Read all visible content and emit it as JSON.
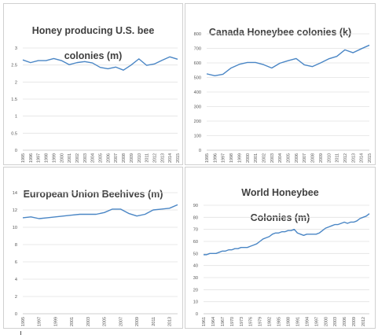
{
  "chart_data": [
    {
      "type": "line",
      "title": "Honey producing U.S. bee colonies (m)",
      "title_lines": [
        "Honey producing U.S. bee",
        "colonies (m)"
      ],
      "xlabel": "",
      "ylabel": "",
      "ylim": [
        0,
        3
      ],
      "yticks": [
        "0",
        "0.5",
        "1",
        "1.5",
        "2",
        "2.5",
        "3"
      ],
      "xticks": [
        "1995",
        "1996",
        "1997",
        "1998",
        "1999",
        "2000",
        "2001",
        "2002",
        "2003",
        "2004",
        "2005",
        "2006",
        "2007",
        "2008",
        "2009",
        "2010",
        "2011",
        "2012",
        "2013",
        "2014",
        "2015"
      ],
      "grid": true,
      "series": [
        {
          "color": "#4a86c5",
          "x": [
            1995,
            1996,
            1997,
            1998,
            1999,
            2000,
            2001,
            2002,
            2003,
            2004,
            2005,
            2006,
            2007,
            2008,
            2009,
            2010,
            2011,
            2012,
            2013,
            2014,
            2015
          ],
          "values": [
            2.65,
            2.57,
            2.63,
            2.63,
            2.69,
            2.63,
            2.51,
            2.57,
            2.6,
            2.56,
            2.43,
            2.39,
            2.44,
            2.35,
            2.5,
            2.68,
            2.49,
            2.53,
            2.64,
            2.74,
            2.67
          ]
        }
      ]
    },
    {
      "type": "line",
      "title": "Canada Honeybee colonies (k)",
      "title_lines": [
        "Canada Honeybee colonies (k)"
      ],
      "xlabel": "",
      "ylabel": "",
      "ylim": [
        0,
        800
      ],
      "yticks": [
        "0",
        "100",
        "200",
        "300",
        "400",
        "500",
        "600",
        "700",
        "800"
      ],
      "xticks": [
        "1995",
        "1996",
        "1997",
        "1998",
        "1999",
        "2000",
        "2001",
        "2002",
        "2003",
        "2004",
        "2005",
        "2006",
        "2007",
        "2008",
        "2009",
        "2010",
        "2011",
        "2012",
        "2013",
        "2014",
        "2015"
      ],
      "grid": true,
      "series": [
        {
          "color": "#4a86c5",
          "x": [
            1995,
            1996,
            1997,
            1998,
            1999,
            2000,
            2001,
            2002,
            2003,
            2004,
            2005,
            2006,
            2007,
            2008,
            2009,
            2010,
            2011,
            2012,
            2013,
            2014,
            2015
          ],
          "values": [
            525,
            512,
            522,
            565,
            590,
            603,
            603,
            588,
            565,
            598,
            615,
            630,
            587,
            575,
            600,
            628,
            645,
            690,
            670,
            697,
            722
          ]
        }
      ]
    },
    {
      "type": "line",
      "title": "European Union Beehives (m)",
      "title_lines": [
        "European Union Beehives (m)"
      ],
      "xlabel": "",
      "ylabel": "",
      "ylim": [
        0,
        14
      ],
      "yticks": [
        "0",
        "2",
        "4",
        "6",
        "8",
        "10",
        "12",
        "14"
      ],
      "xticks": [
        "1995",
        "1997",
        "1999",
        "2001",
        "2003",
        "2005",
        "2007",
        "2009",
        "2011",
        "2013"
      ],
      "grid": true,
      "series": [
        {
          "color": "#4a86c5",
          "x": [
            1995,
            1996,
            1997,
            1998,
            1999,
            2000,
            2001,
            2002,
            2003,
            2004,
            2005,
            2006,
            2007,
            2008,
            2009,
            2010,
            2011,
            2012,
            2013,
            2014
          ],
          "values": [
            11.1,
            11.2,
            11.0,
            11.1,
            11.2,
            11.3,
            11.4,
            11.5,
            11.5,
            11.5,
            11.7,
            12.1,
            12.1,
            11.6,
            11.3,
            11.5,
            12.0,
            12.1,
            12.2,
            12.6
          ]
        }
      ]
    },
    {
      "type": "line",
      "title": "World Honeybee Colonies (m)",
      "title_lines": [
        "World Honeybee",
        "Colonies (m)"
      ],
      "xlabel": "",
      "ylabel": "",
      "ylim": [
        0,
        90
      ],
      "yticks": [
        "0",
        "10",
        "20",
        "30",
        "40",
        "50",
        "60",
        "70",
        "80",
        "90"
      ],
      "xticks": [
        "1961",
        "1964",
        "1967",
        "1970",
        "1973",
        "1976",
        "1979",
        "1982",
        "1985",
        "1988",
        "1991",
        "1994",
        "1997",
        "2000",
        "2003",
        "2006",
        "2009",
        "2012"
      ],
      "grid": true,
      "series": [
        {
          "color": "#4a86c5",
          "x": [
            1961,
            1962,
            1963,
            1964,
            1965,
            1966,
            1967,
            1968,
            1969,
            1970,
            1971,
            1972,
            1973,
            1974,
            1975,
            1976,
            1977,
            1978,
            1979,
            1980,
            1981,
            1982,
            1983,
            1984,
            1985,
            1986,
            1987,
            1988,
            1989,
            1990,
            1991,
            1992,
            1993,
            1994,
            1995,
            1996,
            1997,
            1998,
            1999,
            2000,
            2001,
            2002,
            2003,
            2004,
            2005,
            2006,
            2007,
            2008,
            2009,
            2010,
            2011,
            2012,
            2013,
            2014
          ],
          "values": [
            49,
            49,
            50,
            50,
            50,
            51,
            52,
            52,
            53,
            53,
            54,
            54,
            55,
            55,
            55,
            56,
            57,
            58,
            60,
            62,
            63,
            64,
            66,
            67,
            67,
            68,
            68,
            69,
            69,
            70,
            67,
            66,
            65,
            66,
            66,
            66,
            66,
            67,
            69,
            71,
            72,
            73,
            74,
            74,
            75,
            76,
            75,
            76,
            76,
            77,
            79,
            80,
            81,
            83
          ]
        }
      ]
    }
  ]
}
